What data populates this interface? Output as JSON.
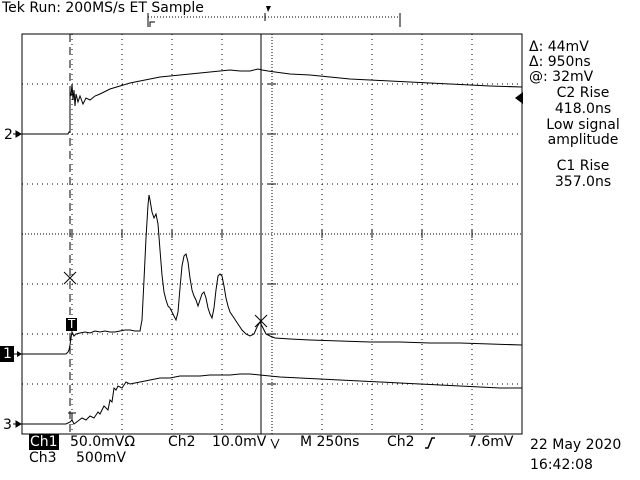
{
  "header": {
    "brand": "Tek",
    "status": "Run: 200MS/s ET Sample"
  },
  "readouts": {
    "delta_v": "Δ: 44mV",
    "delta_t": "Δ: 950ns",
    "at_v": "@: 32mV",
    "c2_rise_label": "C2 Rise",
    "c2_rise_value": "418.0ns",
    "note_line1": "Low signal",
    "note_line2": "amplitude",
    "c1_rise_label": "C1 Rise",
    "c1_rise_value": "357.0ns"
  },
  "markers": {
    "ch2": "2",
    "ch1": "1",
    "ch3": "3",
    "trigger": "T"
  },
  "status_bar": {
    "ch1_label": "Ch1",
    "ch1_scale": "50.0mVΩ",
    "ch2_label": "Ch2",
    "ch2_scale": "10.0mV",
    "ch3_label": "Ch3",
    "ch3_scale": "500mV",
    "timebase": "M 250ns",
    "trig_source": "Ch2",
    "trig_level": "7.6mV",
    "date": "22 May 2020",
    "time": "16:42:08"
  },
  "colors": {
    "background": "#ffffff",
    "trace": "#000000",
    "grid": "#000000"
  }
}
